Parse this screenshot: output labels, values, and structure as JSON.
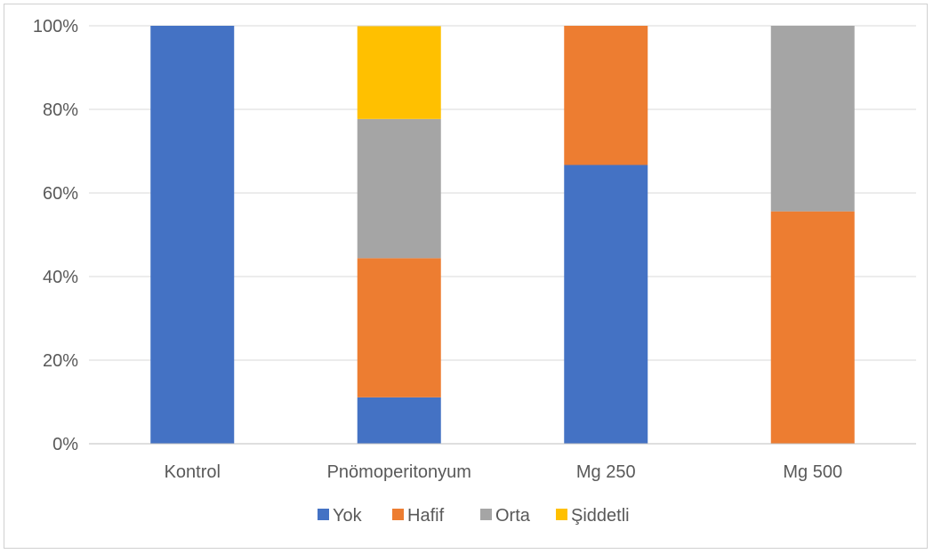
{
  "chart_data": {
    "type": "bar",
    "stacked": true,
    "percent_stacked": true,
    "title": "",
    "xlabel": "",
    "ylabel": "",
    "categories": [
      "Kontrol",
      "Pnömoperitonyum",
      "Mg 250",
      "Mg 500"
    ],
    "series": [
      {
        "name": "Yok",
        "color": "#4472C4",
        "values": [
          100,
          11.1,
          66.7,
          0
        ]
      },
      {
        "name": "Hafif",
        "color": "#ED7D31",
        "values": [
          0,
          33.3,
          33.3,
          55.6
        ]
      },
      {
        "name": "Orta",
        "color": "#A5A5A5",
        "values": [
          0,
          33.3,
          0,
          44.4
        ]
      },
      {
        "name": "Şiddetli",
        "color": "#FFC000",
        "values": [
          0,
          22.2,
          0,
          0
        ]
      }
    ],
    "ylim": [
      0,
      100
    ],
    "yticks": [
      0,
      20,
      40,
      60,
      80,
      100
    ],
    "ytick_labels": [
      "0%",
      "20%",
      "40%",
      "60%",
      "80%",
      "100%"
    ],
    "grid": true,
    "legend_position": "bottom"
  }
}
